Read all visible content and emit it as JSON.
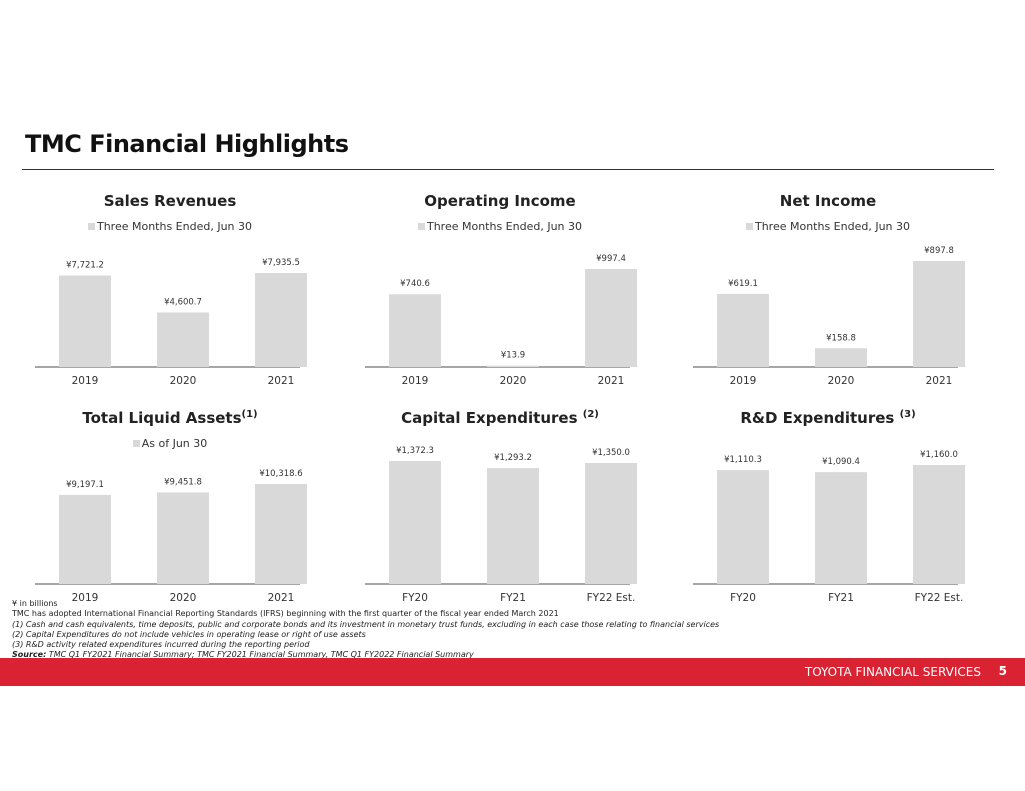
{
  "header": {
    "title": "TMC Financial Highlights"
  },
  "chart_data": [
    {
      "type": "bar",
      "title": "Sales Revenues",
      "sup": "",
      "legend": "Three Months Ended, Jun 30",
      "categories": [
        "2019",
        "2020",
        "2021"
      ],
      "values": [
        7721.2,
        4600.7,
        7935.5
      ],
      "labels": [
        "¥7,721.2",
        "¥4,600.7",
        "¥7,935.5"
      ],
      "bar_color": "#d9d9d9"
    },
    {
      "type": "bar",
      "title": "Operating Income",
      "sup": "",
      "legend": "Three Months Ended, Jun 30",
      "categories": [
        "2019",
        "2020",
        "2021"
      ],
      "values": [
        740.6,
        13.9,
        997.4
      ],
      "labels": [
        "¥740.6",
        "¥13.9",
        "¥997.4"
      ],
      "bar_color": "#d9d9d9"
    },
    {
      "type": "bar",
      "title": "Net Income",
      "sup": "",
      "legend": "Three Months Ended, Jun 30",
      "categories": [
        "2019",
        "2020",
        "2021"
      ],
      "values": [
        619.1,
        158.8,
        897.8
      ],
      "labels": [
        "¥619.1",
        "¥158.8",
        "¥897.8"
      ],
      "bar_color": "#d9d9d9"
    },
    {
      "type": "bar",
      "title": "Total Liquid Assets",
      "sup": "(1)",
      "legend": "As of Jun 30",
      "categories": [
        "2019",
        "2020",
        "2021"
      ],
      "values": [
        9197.1,
        9451.8,
        10318.6
      ],
      "labels": [
        "¥9,197.1",
        "¥9,451.8",
        "¥10,318.6"
      ],
      "bar_color": "#d9d9d9"
    },
    {
      "type": "bar",
      "title": "Capital Expenditures ",
      "sup": "(2)",
      "legend": "",
      "categories": [
        "FY20",
        "FY21",
        "FY22 Est."
      ],
      "values": [
        1372.3,
        1293.2,
        1350.0
      ],
      "labels": [
        "¥1,372.3",
        "¥1,293.2",
        "¥1,350.0"
      ],
      "bar_color": "#d9d9d9"
    },
    {
      "type": "bar",
      "title": "R&D Expenditures ",
      "sup": "(3)",
      "legend": "",
      "categories": [
        "FY20",
        "FY21",
        "FY22 Est."
      ],
      "values": [
        1110.3,
        1090.4,
        1160.0
      ],
      "labels": [
        "¥1,110.3",
        "¥1,090.4",
        "¥1,160.0"
      ],
      "bar_color": "#d9d9d9"
    }
  ],
  "footnotes": {
    "units": "¥ in billions",
    "ifrs": "TMC has adopted International Financial Reporting Standards (IFRS) beginning with the first quarter of the fiscal year ended March 2021",
    "n1": "(1)    Cash and cash equivalents, time deposits, public and corporate bonds and its investment in monetary trust funds, excluding in each case those relating to financial services",
    "n2": "(2)    Capital Expenditures do not include vehicles in operating lease or right of use assets",
    "n3": "(3)    R&D activity related expenditures incurred during the reporting period",
    "source_label": "Source:",
    "source": " TMC Q1 FY2021 Financial Summary; TMC FY2021 Financial Summary, TMC Q1 FY2022 Financial Summary"
  },
  "footer": {
    "brand": "TOYOTA FINANCIAL SERVICES",
    "page": "5",
    "color": "#d92232"
  }
}
